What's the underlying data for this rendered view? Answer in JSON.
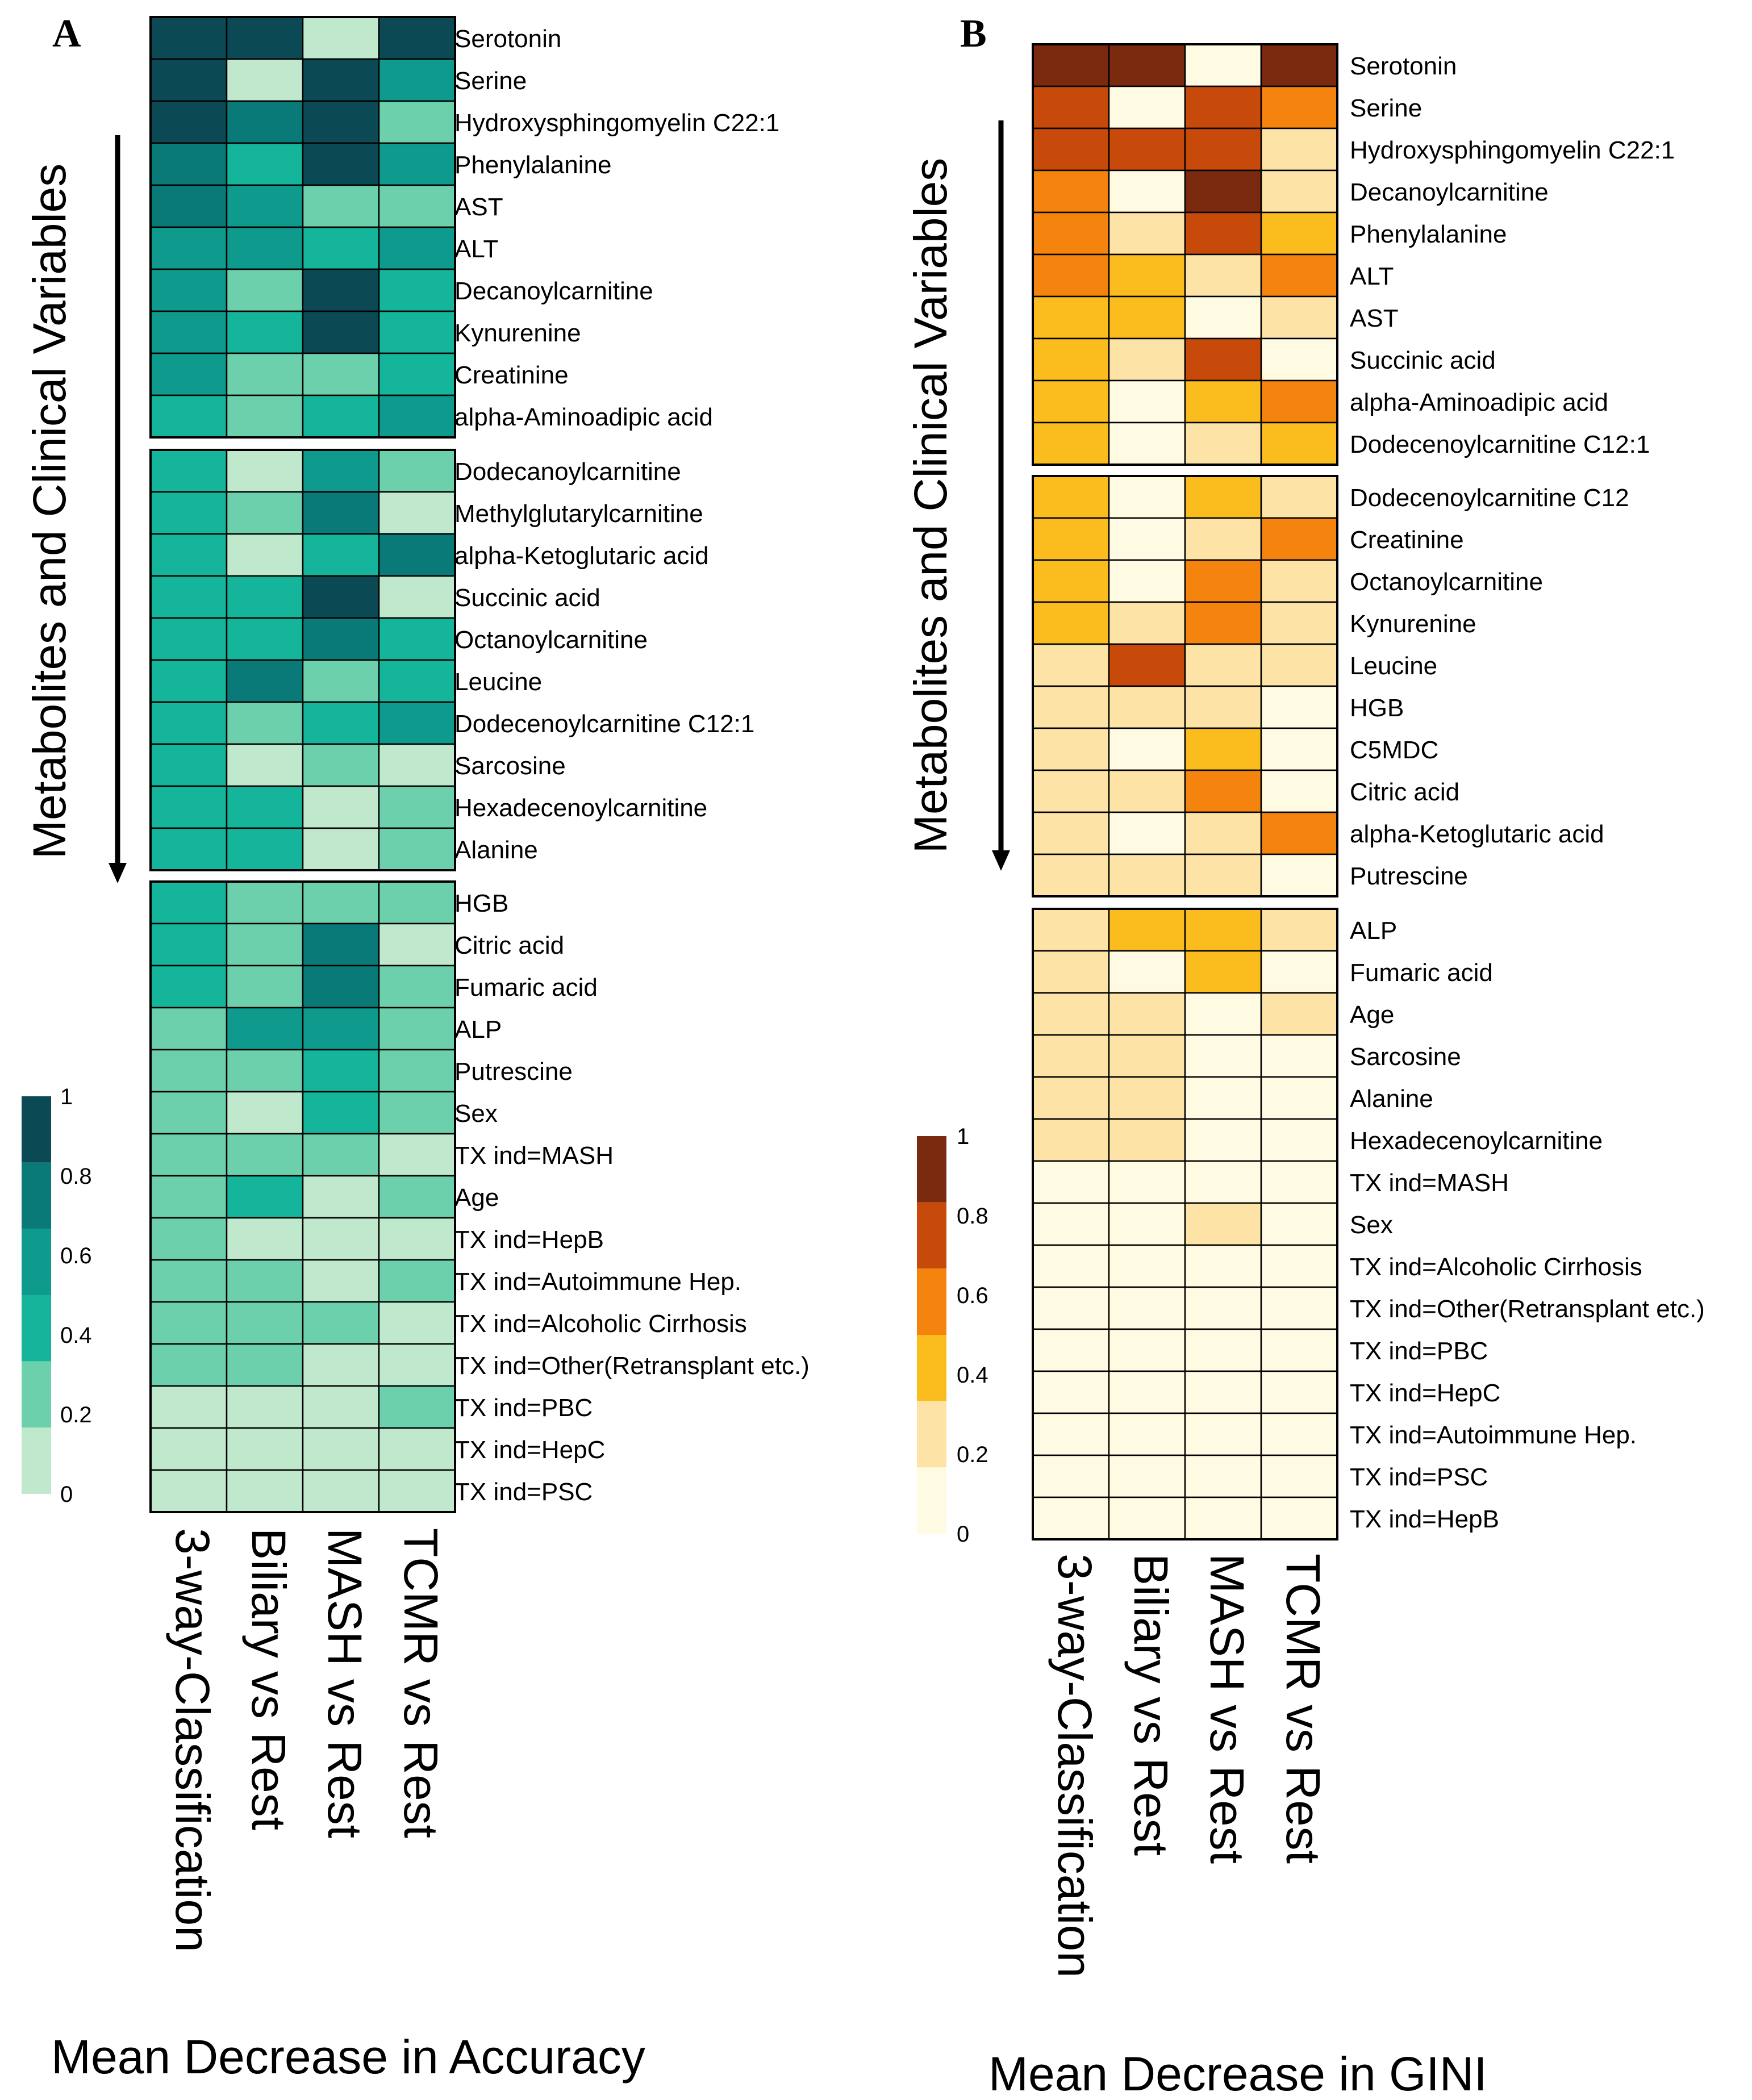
{
  "chart_data": [
    {
      "type": "heatmap",
      "panel": "A",
      "title": "Mean Decrease in Accuracy",
      "ylabel": "Metabolites and Clinical Variables",
      "columns": [
        "3-way-Classification",
        "Biliary vs Rest",
        "MASH vs Rest",
        "TCMR vs Rest"
      ],
      "legend": {
        "ticks": [
          "1",
          "0.8",
          "0.6",
          "0.4",
          "0.2",
          "0"
        ],
        "colors": [
          "#0b4a55",
          "#0a7a78",
          "#0f9a8e",
          "#14b59b",
          "#6dd0ad",
          "#c0e8cc"
        ]
      },
      "groups": [
        [
          {
            "name": "Serotonin",
            "values": [
              0.9,
              0.9,
              0.1,
              0.9
            ]
          },
          {
            "name": "Serine",
            "values": [
              0.9,
              0.1,
              0.9,
              0.5
            ]
          },
          {
            "name": "Hydroxysphingomyelin C22:1",
            "values": [
              0.9,
              0.7,
              0.9,
              0.3
            ]
          },
          {
            "name": "Phenylalanine",
            "values": [
              0.7,
              0.4,
              0.9,
              0.5
            ]
          },
          {
            "name": "AST",
            "values": [
              0.7,
              0.5,
              0.3,
              0.3
            ]
          },
          {
            "name": "ALT",
            "values": [
              0.5,
              0.5,
              0.4,
              0.5
            ]
          },
          {
            "name": "Decanoylcarnitine",
            "values": [
              0.5,
              0.3,
              0.9,
              0.4
            ]
          },
          {
            "name": "Kynurenine",
            "values": [
              0.5,
              0.4,
              0.9,
              0.4
            ]
          },
          {
            "name": "Creatinine",
            "values": [
              0.5,
              0.3,
              0.3,
              0.4
            ]
          },
          {
            "name": "alpha-Aminoadipic acid",
            "values": [
              0.4,
              0.3,
              0.4,
              0.5
            ]
          }
        ],
        [
          {
            "name": "Dodecanoylcarnitine",
            "values": [
              0.4,
              0.1,
              0.5,
              0.3
            ]
          },
          {
            "name": "Methylglutarylcarnitine",
            "values": [
              0.4,
              0.3,
              0.7,
              0.1
            ]
          },
          {
            "name": "alpha-Ketoglutaric acid",
            "values": [
              0.4,
              0.1,
              0.4,
              0.7
            ]
          },
          {
            "name": "Succinic acid",
            "values": [
              0.4,
              0.4,
              0.9,
              0.1
            ]
          },
          {
            "name": "Octanoylcarnitine",
            "values": [
              0.4,
              0.4,
              0.7,
              0.4
            ]
          },
          {
            "name": "Leucine",
            "values": [
              0.4,
              0.7,
              0.3,
              0.4
            ]
          },
          {
            "name": "Dodecenoylcarnitine C12:1",
            "values": [
              0.4,
              0.3,
              0.4,
              0.5
            ]
          },
          {
            "name": "Sarcosine",
            "values": [
              0.4,
              0.1,
              0.3,
              0.1
            ]
          },
          {
            "name": "Hexadecenoylcarnitine",
            "values": [
              0.4,
              0.4,
              0.1,
              0.3
            ]
          },
          {
            "name": "Alanine",
            "values": [
              0.4,
              0.4,
              0.1,
              0.3
            ]
          }
        ],
        [
          {
            "name": "HGB",
            "values": [
              0.4,
              0.3,
              0.3,
              0.3
            ]
          },
          {
            "name": "Citric acid",
            "values": [
              0.4,
              0.3,
              0.7,
              0.1
            ]
          },
          {
            "name": "Fumaric acid",
            "values": [
              0.4,
              0.3,
              0.7,
              0.3
            ]
          },
          {
            "name": "ALP",
            "values": [
              0.3,
              0.5,
              0.5,
              0.3
            ]
          },
          {
            "name": "Putrescine",
            "values": [
              0.3,
              0.3,
              0.4,
              0.3
            ]
          },
          {
            "name": "Sex",
            "values": [
              0.3,
              0.1,
              0.4,
              0.3
            ]
          },
          {
            "name": "TX ind=MASH",
            "values": [
              0.3,
              0.3,
              0.3,
              0.1
            ]
          },
          {
            "name": "Age",
            "values": [
              0.3,
              0.4,
              0.1,
              0.3
            ]
          },
          {
            "name": "TX ind=HepB",
            "values": [
              0.3,
              0.1,
              0.1,
              0.1
            ]
          },
          {
            "name": "TX ind=Autoimmune Hep.",
            "values": [
              0.3,
              0.3,
              0.1,
              0.3
            ]
          },
          {
            "name": "TX ind=Alcoholic Cirrhosis",
            "values": [
              0.3,
              0.3,
              0.3,
              0.1
            ]
          },
          {
            "name": "TX ind=Other(Retransplant etc.)",
            "values": [
              0.3,
              0.3,
              0.1,
              0.1
            ]
          },
          {
            "name": "TX ind=PBC",
            "values": [
              0.1,
              0.1,
              0.1,
              0.3
            ]
          },
          {
            "name": "TX ind=HepC",
            "values": [
              0.1,
              0.1,
              0.1,
              0.1
            ]
          },
          {
            "name": "TX ind=PSC",
            "values": [
              0.1,
              0.1,
              0.1,
              0.1
            ]
          }
        ]
      ]
    },
    {
      "type": "heatmap",
      "panel": "B",
      "title": "Mean Decrease in GINI",
      "ylabel": "Metabolites and Clinical Variables",
      "columns": [
        "3-way-Classification",
        "Biliary vs Rest",
        "MASH vs Rest",
        "TCMR vs Rest"
      ],
      "legend": {
        "ticks": [
          "1",
          "0.8",
          "0.6",
          "0.4",
          "0.2",
          "0"
        ],
        "colors": [
          "#7a2a0f",
          "#c74a0b",
          "#f4840d",
          "#fbbd1d",
          "#fde3a6",
          "#fffbe3"
        ]
      },
      "groups": [
        [
          {
            "name": "Serotonin",
            "values": [
              0.9,
              0.9,
              0.1,
              0.9
            ]
          },
          {
            "name": "Serine",
            "values": [
              0.7,
              0.1,
              0.7,
              0.5
            ]
          },
          {
            "name": "Hydroxysphingomyelin C22:1",
            "values": [
              0.7,
              0.7,
              0.7,
              0.3
            ]
          },
          {
            "name": "Decanoylcarnitine",
            "values": [
              0.5,
              0.1,
              0.9,
              0.3
            ]
          },
          {
            "name": "Phenylalanine",
            "values": [
              0.5,
              0.3,
              0.7,
              0.4
            ]
          },
          {
            "name": "ALT",
            "values": [
              0.5,
              0.4,
              0.3,
              0.5
            ]
          },
          {
            "name": "AST",
            "values": [
              0.4,
              0.4,
              0.1,
              0.3
            ]
          },
          {
            "name": "Succinic acid",
            "values": [
              0.4,
              0.3,
              0.7,
              0.1
            ]
          },
          {
            "name": "alpha-Aminoadipic acid",
            "values": [
              0.4,
              0.1,
              0.4,
              0.5
            ]
          },
          {
            "name": "Dodecenoylcarnitine C12:1",
            "values": [
              0.4,
              0.1,
              0.3,
              0.4
            ]
          }
        ],
        [
          {
            "name": "Dodecenoylcarnitine C12",
            "values": [
              0.4,
              0.1,
              0.4,
              0.3
            ]
          },
          {
            "name": "Creatinine",
            "values": [
              0.4,
              0.1,
              0.3,
              0.5
            ]
          },
          {
            "name": "Octanoylcarnitine",
            "values": [
              0.4,
              0.1,
              0.5,
              0.3
            ]
          },
          {
            "name": "Kynurenine",
            "values": [
              0.4,
              0.3,
              0.5,
              0.3
            ]
          },
          {
            "name": "Leucine",
            "values": [
              0.3,
              0.7,
              0.3,
              0.3
            ]
          },
          {
            "name": "HGB",
            "values": [
              0.3,
              0.3,
              0.3,
              0.1
            ]
          },
          {
            "name": "C5MDC",
            "values": [
              0.3,
              0.1,
              0.4,
              0.1
            ]
          },
          {
            "name": "Citric acid",
            "values": [
              0.3,
              0.3,
              0.5,
              0.1
            ]
          },
          {
            "name": "alpha-Ketoglutaric acid",
            "values": [
              0.3,
              0.1,
              0.3,
              0.5
            ]
          },
          {
            "name": "Putrescine",
            "values": [
              0.3,
              0.3,
              0.3,
              0.1
            ]
          }
        ],
        [
          {
            "name": "ALP",
            "values": [
              0.3,
              0.4,
              0.4,
              0.3
            ]
          },
          {
            "name": "Fumaric acid",
            "values": [
              0.3,
              0.1,
              0.4,
              0.1
            ]
          },
          {
            "name": "Age",
            "values": [
              0.3,
              0.3,
              0.1,
              0.3
            ]
          },
          {
            "name": "Sarcosine",
            "values": [
              0.3,
              0.3,
              0.1,
              0.1
            ]
          },
          {
            "name": "Alanine",
            "values": [
              0.3,
              0.3,
              0.1,
              0.1
            ]
          },
          {
            "name": "Hexadecenoylcarnitine",
            "values": [
              0.3,
              0.3,
              0.1,
              0.1
            ]
          },
          {
            "name": "TX ind=MASH",
            "values": [
              0.1,
              0.1,
              0.1,
              0.1
            ]
          },
          {
            "name": "Sex",
            "values": [
              0.1,
              0.1,
              0.3,
              0.1
            ]
          },
          {
            "name": "TX ind=Alcoholic Cirrhosis",
            "values": [
              0.1,
              0.1,
              0.1,
              0.1
            ]
          },
          {
            "name": "TX ind=Other(Retransplant etc.)",
            "values": [
              0.1,
              0.1,
              0.1,
              0.1
            ]
          },
          {
            "name": "TX ind=PBC",
            "values": [
              0.1,
              0.1,
              0.1,
              0.1
            ]
          },
          {
            "name": "TX ind=HepC",
            "values": [
              0.1,
              0.1,
              0.1,
              0.1
            ]
          },
          {
            "name": "TX ind=Autoimmune Hep.",
            "values": [
              0.1,
              0.1,
              0.1,
              0.1
            ]
          },
          {
            "name": "TX ind=PSC",
            "values": [
              0.1,
              0.1,
              0.1,
              0.1
            ]
          },
          {
            "name": "TX ind=HepB",
            "values": [
              0.1,
              0.1,
              0.1,
              0.1
            ]
          }
        ]
      ]
    }
  ]
}
